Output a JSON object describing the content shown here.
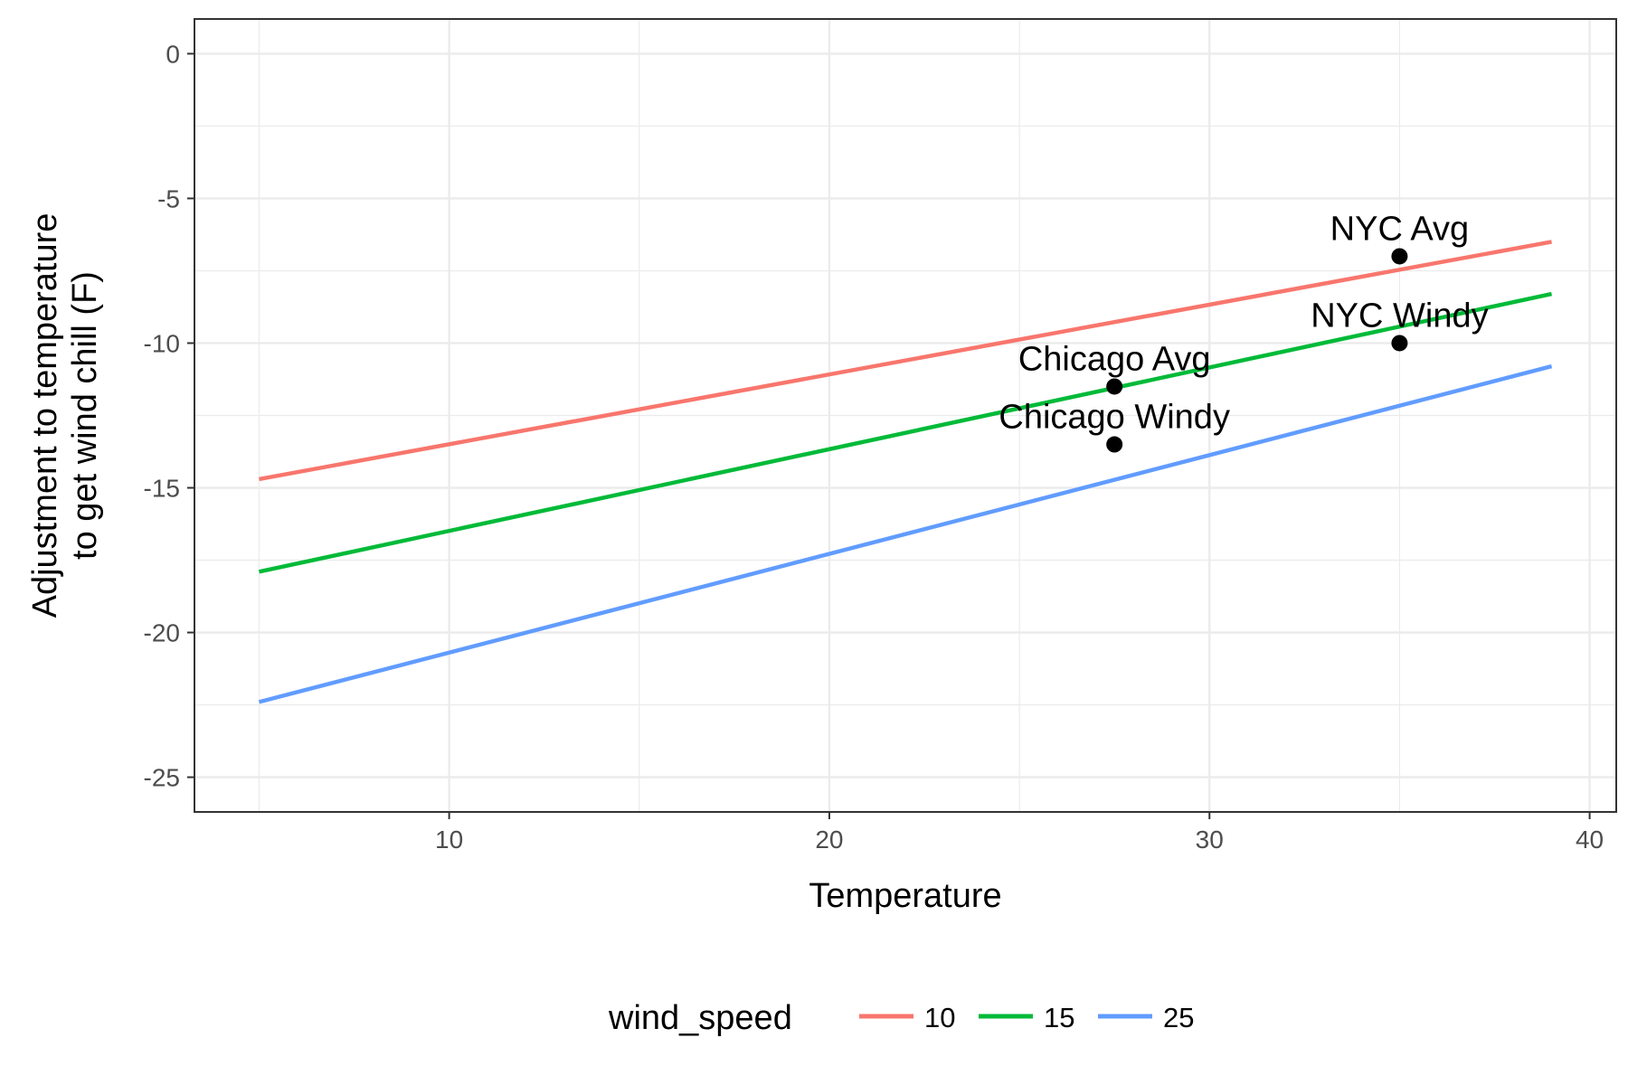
{
  "chart_data": {
    "type": "line",
    "title": "",
    "xlabel": "Temperature",
    "ylabel_lines": [
      "Adjustment to temperature",
      "to get wind chill (F)"
    ],
    "xlim": [
      3.3,
      40.7
    ],
    "ylim": [
      -26.2,
      1.2
    ],
    "x_ticks": [
      10,
      20,
      30,
      40
    ],
    "y_ticks": [
      0,
      -5,
      -10,
      -15,
      -20,
      -25
    ],
    "y_tick_labels": [
      "0",
      "-5",
      "-10",
      "-15",
      "-20",
      "-25"
    ],
    "grid": true,
    "legend": {
      "title": "wind_speed",
      "placement": "bottom"
    },
    "series": [
      {
        "name": "10",
        "color": "#F8766D",
        "x": [
          5,
          39
        ],
        "y": [
          -14.7,
          -6.5
        ]
      },
      {
        "name": "15",
        "color": "#00BA38",
        "x": [
          5,
          39
        ],
        "y": [
          -17.9,
          -8.3
        ]
      },
      {
        "name": "25",
        "color": "#619CFF",
        "x": [
          5,
          39
        ],
        "y": [
          -22.4,
          -10.8
        ]
      }
    ],
    "points": [
      {
        "label": "NYC Avg",
        "x": 35,
        "y": -7.0
      },
      {
        "label": "NYC Windy",
        "x": 35,
        "y": -10.0
      },
      {
        "label": "Chicago Avg",
        "x": 27.5,
        "y": -11.5
      },
      {
        "label": "Chicago Windy",
        "x": 27.5,
        "y": -13.5
      }
    ]
  }
}
